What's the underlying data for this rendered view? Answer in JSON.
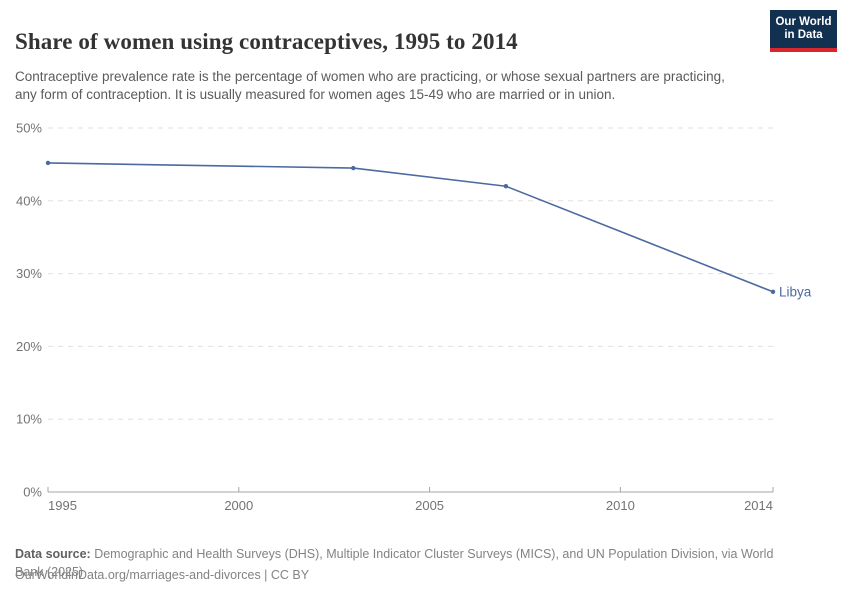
{
  "header": {
    "title": "Share of women using contraceptives, 1995 to 2014",
    "subtitle": "Contraceptive prevalence rate is the percentage of women who are practicing, or whose sexual partners are practicing, any form of contraception. It is usually measured for women ages 15-49 who are married or in union.",
    "logo": {
      "line1": "Our World",
      "line2": "in Data"
    }
  },
  "chart_data": {
    "type": "line",
    "title": "Share of women using contraceptives, 1995 to 2014",
    "xlabel": "",
    "ylabel": "",
    "xlim": [
      1995,
      2014
    ],
    "ylim": [
      0,
      50
    ],
    "grid": "horizontal-dashed",
    "legend_position": "end-of-line-label",
    "x_ticks": [
      1995,
      2000,
      2005,
      2010,
      2014
    ],
    "x_tick_labels": [
      "1995",
      "2000",
      "2005",
      "2010",
      "2014"
    ],
    "y_ticks": [
      0,
      10,
      20,
      30,
      40,
      50
    ],
    "y_tick_labels": [
      "0%",
      "10%",
      "20%",
      "30%",
      "40%",
      "50%"
    ],
    "series": [
      {
        "name": "Libya",
        "x": [
          1995,
          2003,
          2007,
          2014
        ],
        "values": [
          45.2,
          44.5,
          42.0,
          27.5
        ]
      }
    ]
  },
  "footer": {
    "source_label": "Data source:",
    "source_text": " Demographic and Health Surveys (DHS), Multiple Indicator Cluster Surveys (MICS), and UN Population Division, via World Bank (2025)",
    "link_text": "OurWorldinData.org/marriages-and-divorces | CC BY"
  },
  "colors": {
    "line": "#4C6AA2",
    "end_label": "#4C6AA2",
    "gridline": "#E0E0E0",
    "axis": "#A5A5A5",
    "tick_label": "#737373",
    "logo_bg": "#12304F",
    "logo_accent": "#D8262C"
  }
}
